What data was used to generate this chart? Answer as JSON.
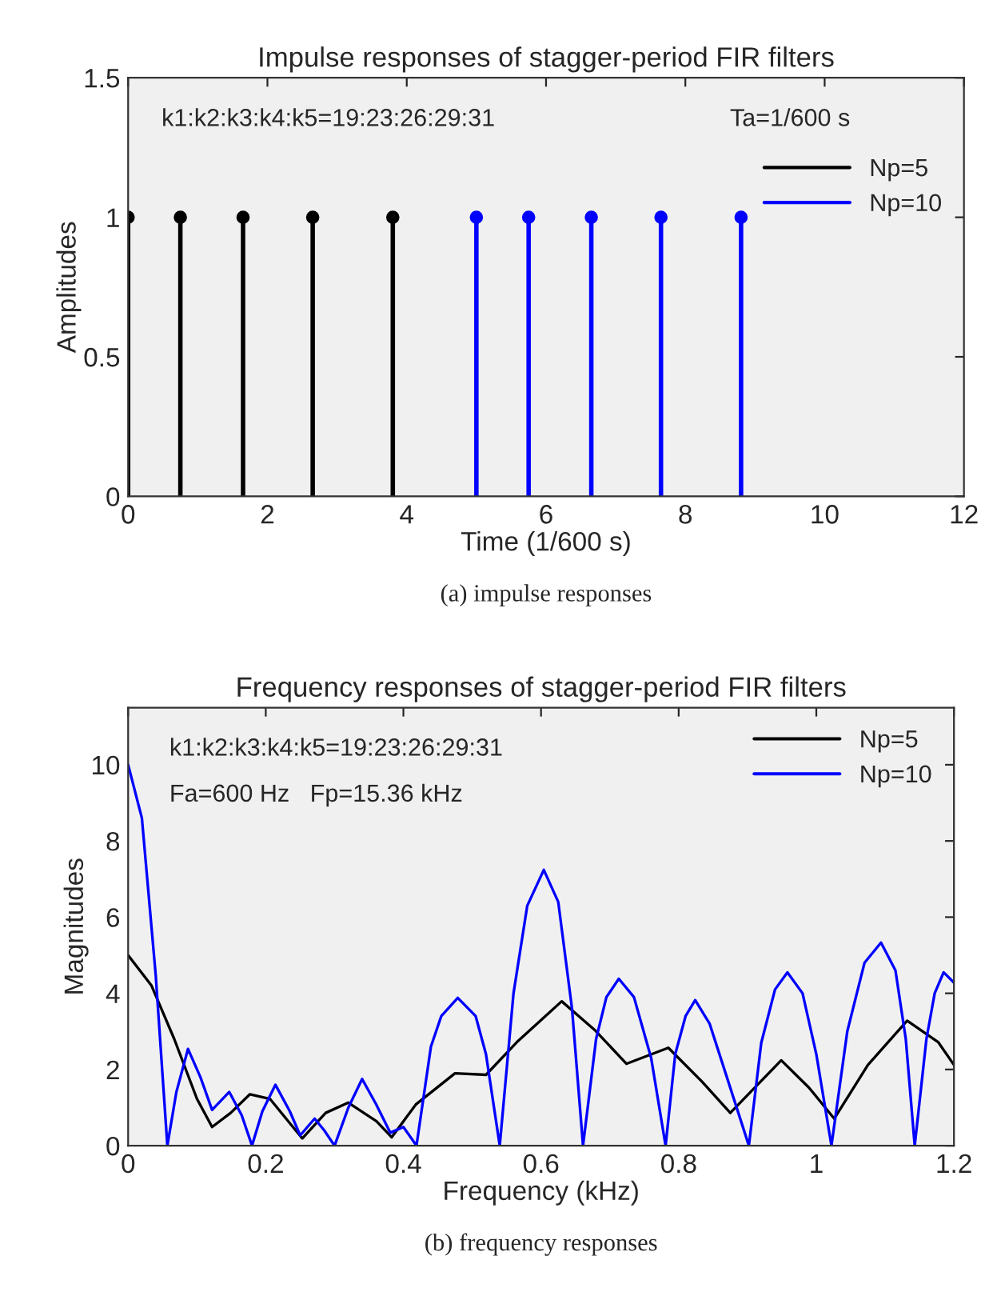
{
  "chart_data": [
    {
      "type": "lollipop",
      "title": "Impulse responses of stagger-period FIR filters",
      "xlabel": "Time (1/600 s)",
      "ylabel": "Amplitudes",
      "annotations": [
        "k1:k2:k3:k4:k5=19:23:26:29:31",
        "Ta=1/600 s",
        "(a) impulse responses"
      ],
      "series": [
        {
          "name": "Np=5",
          "color": "#000000",
          "x": [
            0,
            0.75,
            1.65,
            2.65,
            3.8
          ],
          "values": [
            1,
            1,
            1,
            1,
            1
          ]
        },
        {
          "name": "Np=10",
          "color": "#0000ff",
          "x": [
            5,
            5.75,
            6.65,
            7.65,
            8.8
          ],
          "values": [
            1,
            1,
            1,
            1,
            1
          ]
        }
      ],
      "xlim": [
        0,
        12
      ],
      "xticks": [
        0,
        2,
        4,
        6,
        8,
        10,
        12
      ],
      "ylim": [
        0,
        1.5
      ],
      "yticks": [
        0,
        0.5,
        1,
        1.5
      ],
      "marker": "circle",
      "legend": "top right",
      "grid": false
    },
    {
      "type": "line",
      "title": "Frequency responses of stagger-period FIR filters",
      "xlabel": "Frequency (kHz)",
      "ylabel": "Magnitudes",
      "annotations": [
        "k1:k2:k3:k4:k5=19:23:26:29:31",
        "Fa=600 Hz   Fp=15.36 kHz",
        "(b) frequency responses"
      ],
      "series": [
        {
          "name": "Np=5",
          "color": "#000000",
          "x": [
            0,
            0.034,
            0.067,
            0.1,
            0.122,
            0.149,
            0.177,
            0.206,
            0.253,
            0.287,
            0.32,
            0.361,
            0.383,
            0.418,
            0.475,
            0.52,
            0.565,
            0.63,
            0.679,
            0.724,
            0.785,
            0.834,
            0.875,
            0.949,
            0.989,
            1.026,
            1.075,
            1.132,
            1.177,
            1.2
          ],
          "values": [
            5.0,
            4.2,
            2.8,
            1.23,
            0.49,
            0.86,
            1.35,
            1.23,
            0.19,
            0.86,
            1.13,
            0.64,
            0.22,
            1.08,
            1.9,
            1.86,
            2.72,
            3.79,
            3.02,
            2.15,
            2.57,
            1.68,
            0.86,
            2.24,
            1.53,
            0.71,
            2.12,
            3.28,
            2.72,
            2.12
          ]
        },
        {
          "name": "Np=10",
          "color": "#0000ff",
          "x": [
            0,
            0.02,
            0.04,
            0.057,
            0.07,
            0.087,
            0.105,
            0.122,
            0.147,
            0.165,
            0.18,
            0.195,
            0.214,
            0.235,
            0.25,
            0.271,
            0.285,
            0.3,
            0.32,
            0.34,
            0.36,
            0.381,
            0.4,
            0.419,
            0.44,
            0.455,
            0.479,
            0.505,
            0.52,
            0.54,
            0.56,
            0.58,
            0.604,
            0.625,
            0.645,
            0.661,
            0.68,
            0.695,
            0.713,
            0.735,
            0.76,
            0.781,
            0.795,
            0.81,
            0.824,
            0.845,
            0.87,
            0.902,
            0.92,
            0.94,
            0.958,
            0.98,
            1.0,
            1.022,
            1.045,
            1.07,
            1.094,
            1.115,
            1.13,
            1.143,
            1.16,
            1.172,
            1.185,
            1.2
          ],
          "values": [
            10,
            8.6,
            4.5,
            0,
            1.4,
            2.54,
            1.8,
            0.94,
            1.41,
            0.8,
            0,
            0.9,
            1.6,
            0.9,
            0.27,
            0.71,
            0.4,
            0,
            1.0,
            1.75,
            1.1,
            0.34,
            0.49,
            0,
            2.6,
            3.4,
            3.88,
            3.4,
            2.4,
            0,
            4.0,
            6.3,
            7.24,
            6.4,
            3.6,
            0,
            2.8,
            3.9,
            4.38,
            3.9,
            2.3,
            0,
            2.4,
            3.4,
            3.82,
            3.2,
            1.8,
            0,
            2.7,
            4.1,
            4.55,
            4.0,
            2.4,
            0,
            3.0,
            4.8,
            5.33,
            4.6,
            2.8,
            0,
            2.8,
            4.0,
            4.55,
            4.28
          ]
        }
      ],
      "xlim": [
        0,
        1.2
      ],
      "xticks": [
        0,
        0.2,
        0.4,
        0.6,
        0.8,
        1,
        1.2
      ],
      "ylim": [
        0,
        11.5
      ],
      "yticks": [
        0,
        2,
        4,
        6,
        8,
        10
      ],
      "legend": "top right",
      "grid": false,
      "marker": "none"
    }
  ]
}
